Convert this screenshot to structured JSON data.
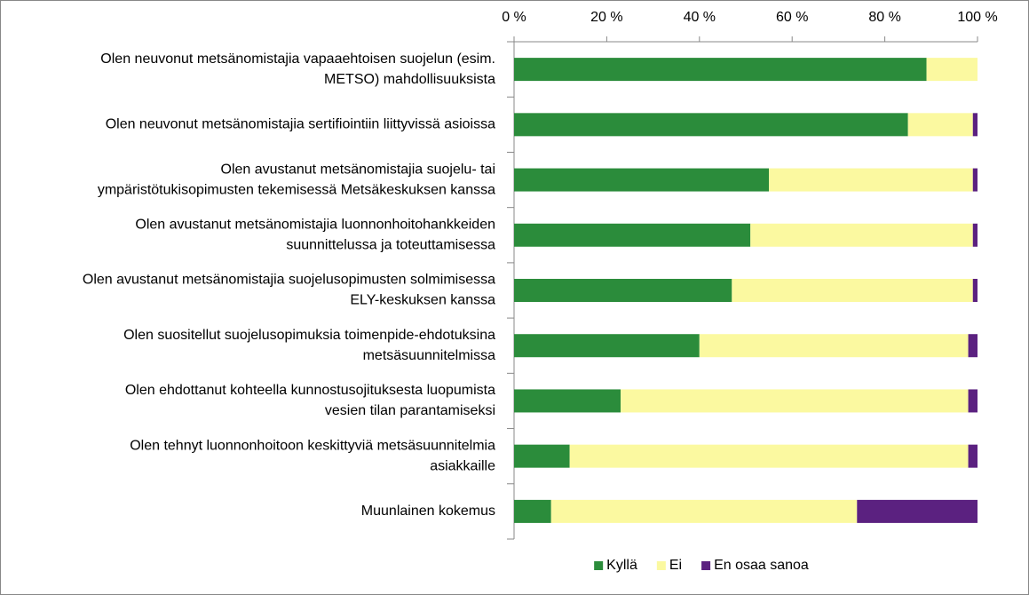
{
  "chart_data": {
    "type": "stacked_barh_percent",
    "categories": [
      [
        "Olen neuvonut metsänomistajia vapaaehtoisen suojelun (esim.",
        "METSO) mahdollisuuksista"
      ],
      [
        "Olen neuvonut metsänomistajia sertifiointiin liittyvissä asioissa"
      ],
      [
        "Olen avustanut metsänomistajia suojelu- tai",
        "ympäristötukisopimusten tekemisessä Metsäkeskuksen kanssa"
      ],
      [
        "Olen avustanut metsänomistajia luonnonhoitohankkeiden",
        "suunnittelussa ja toteuttamisessa"
      ],
      [
        "Olen avustanut metsänomistajia suojelusopimusten solmimisessa",
        "ELY-keskuksen kanssa"
      ],
      [
        "Olen suositellut suojelusopimuksia toimenpide-ehdotuksina",
        "metsäsuunnitelmissa"
      ],
      [
        "Olen ehdottanut kohteella kunnostusojituksesta luopumista",
        "vesien tilan parantamiseksi"
      ],
      [
        "Olen tehnyt luonnonhoitoon keskittyviä metsäsuunnitelmia",
        "asiakkaille"
      ],
      [
        "Muunlainen kokemus"
      ]
    ],
    "series": [
      {
        "name": "Kyllä",
        "color": "#2b8c3b",
        "values": [
          89,
          85,
          55,
          51,
          47,
          40,
          23,
          12,
          8
        ]
      },
      {
        "name": "Ei",
        "color": "#fbf9a0",
        "values": [
          11,
          14,
          44,
          48,
          52,
          58,
          75,
          86,
          66
        ]
      },
      {
        "name": "En osaa sanoa",
        "color": "#5b2180",
        "values": [
          0,
          1,
          1,
          1,
          1,
          2,
          2,
          2,
          26
        ]
      }
    ],
    "xlim": [
      0,
      100
    ],
    "xticks": [
      {
        "value": 0,
        "label": "0 %"
      },
      {
        "value": 20,
        "label": "20 %"
      },
      {
        "value": 40,
        "label": "40 %"
      },
      {
        "value": 60,
        "label": "60 %"
      },
      {
        "value": 80,
        "label": "80 %"
      },
      {
        "value": 100,
        "label": "100 %"
      }
    ],
    "legend": "bottom",
    "grid": false
  }
}
